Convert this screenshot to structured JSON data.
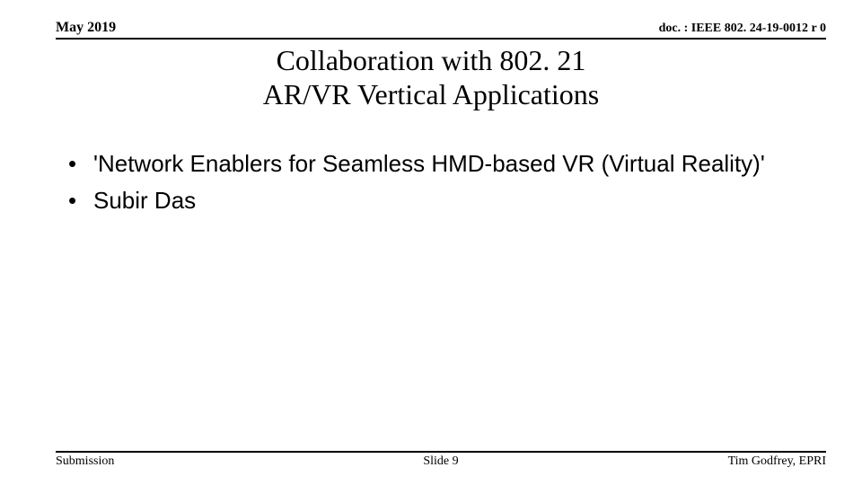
{
  "header": {
    "date": "May 2019",
    "doc_id": "doc. : IEEE 802. 24-19-0012 r 0"
  },
  "title": {
    "line1": "Collaboration with 802. 21",
    "line2": "AR/VR Vertical Applications"
  },
  "body": {
    "items": [
      "'Network Enablers for Seamless HMD-based VR (Virtual Reality)'",
      "Subir Das"
    ]
  },
  "footer": {
    "left": "Submission",
    "center": "Slide 9",
    "right": "Tim Godfrey, EPRI"
  },
  "style": {
    "bg": "#ffffff",
    "text": "#000000",
    "rule": "#000000",
    "title_fontsize": 32,
    "body_fontsize": 26,
    "header_fontsize": 16,
    "footer_fontsize": 14
  }
}
